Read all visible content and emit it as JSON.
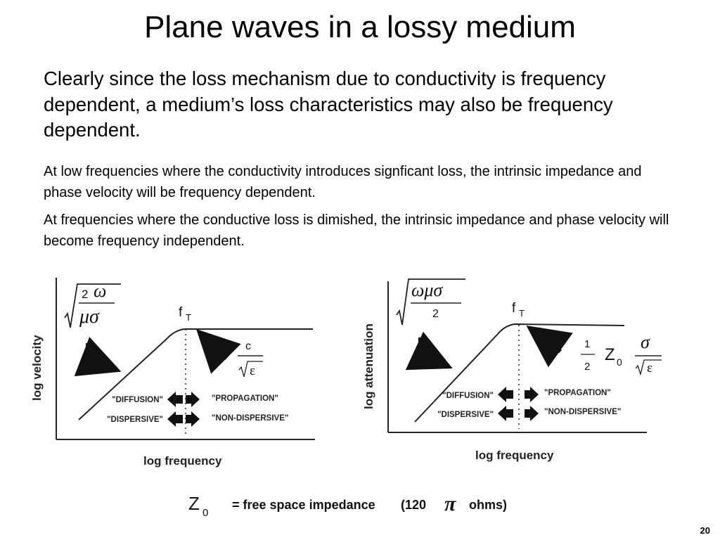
{
  "slide": {
    "title": "Plane waves in a lossy medium",
    "lead": "Clearly since the loss mechanism due to conductivity is frequency dependent, a medium’s loss characteristics may also be frequency dependent.",
    "para1": "At low frequencies where the conductivity introduces signficant loss, the intrinsic impedance and phase velocity will be frequency dependent.",
    "para2": "At frequencies where the conductive loss is dimished, the intrinsic impedance and phase velocity will become frequency independent.",
    "page_number": "20"
  },
  "left_diagram": {
    "y_label": "log velocity",
    "x_label": "log frequency",
    "transition": {
      "f": "f",
      "sub": "T"
    },
    "low_formula": {
      "num_a": "2",
      "num_b": "ω",
      "den": "μσ"
    },
    "high_formula": {
      "num": "c",
      "den": "ε"
    },
    "tags": [
      "\"DIFFUSION\"",
      "\"PROPAGATION\"",
      "\"DISPERSIVE\"",
      "\"NON-DISPERSIVE\""
    ]
  },
  "right_diagram": {
    "y_label": "log attenuation",
    "x_label": "log frequency",
    "transition": {
      "f": "f",
      "sub": "T"
    },
    "low_formula": {
      "num": "ωμσ",
      "den": "2"
    },
    "high_formula": {
      "half_num": "1",
      "half_den": "2",
      "z": "Z",
      "z_sub": "0",
      "num": "σ",
      "den": "ε"
    },
    "tags": [
      "\"DIFFUSION\"",
      "\"PROPAGATION\"",
      "\"DISPERSIVE\"",
      "\"NON-DISPERSIVE\""
    ]
  },
  "footnote": {
    "z": "Z",
    "z_sub": "0",
    "text": "= free space impedance",
    "paren_open": "(120",
    "pi": "π",
    "paren_close": "ohms)"
  }
}
